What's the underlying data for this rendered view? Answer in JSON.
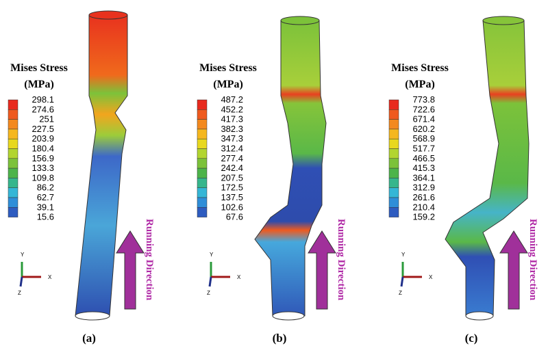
{
  "panels": [
    {
      "legend_title": "Mises Stress",
      "legend_unit": "(MPa)",
      "legend_values": [
        298.1,
        274.6,
        251.0,
        227.5,
        203.9,
        180.4,
        156.9,
        133.3,
        109.8,
        86.2,
        62.7,
        39.1,
        15.6
      ],
      "axis_labels": [
        "Y",
        "X",
        "Z"
      ],
      "direction_label": "Running Direction",
      "caption": "(a)"
    },
    {
      "legend_title": "Mises Stress",
      "legend_unit": "(MPa)",
      "legend_values": [
        487.2,
        452.2,
        417.3,
        382.3,
        347.3,
        312.4,
        277.4,
        242.4,
        207.5,
        172.5,
        137.5,
        102.6,
        67.6
      ],
      "axis_labels": [
        "Y",
        "X",
        "Z"
      ],
      "direction_label": "Running Direction",
      "caption": "(b)"
    },
    {
      "legend_title": "Mises Stress",
      "legend_unit": "(MPa)",
      "legend_values": [
        773.8,
        722.6,
        671.4,
        620.2,
        568.9,
        517.7,
        466.5,
        415.3,
        364.1,
        312.9,
        261.6,
        210.4,
        159.2
      ],
      "axis_labels": [
        "Y",
        "X",
        "Z"
      ],
      "direction_label": "Running Direction",
      "caption": "(c)"
    }
  ]
}
